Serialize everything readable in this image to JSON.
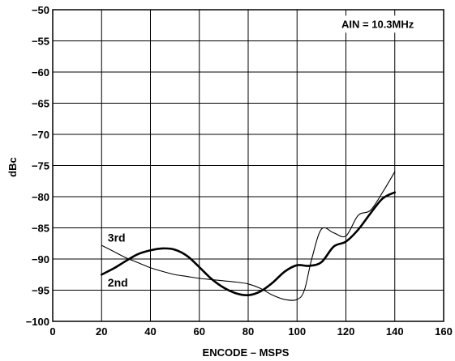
{
  "chart_data": {
    "type": "line",
    "title": "",
    "xlabel": "ENCODE – MSPS",
    "ylabel": "dBc",
    "xlim": [
      0,
      160
    ],
    "ylim": [
      -100,
      -50
    ],
    "xticks": [
      0,
      20,
      40,
      60,
      80,
      100,
      120,
      140,
      160
    ],
    "yticks": [
      -100,
      -95,
      -90,
      -85,
      -80,
      -75,
      -70,
      -65,
      -60,
      -55,
      -50
    ],
    "xtick_labels": [
      "0",
      "20",
      "40",
      "60",
      "80",
      "100",
      "120",
      "140",
      "160"
    ],
    "ytick_labels": [
      "−100",
      "−95",
      "−90",
      "−85",
      "−80",
      "−75",
      "−70",
      "−65",
      "−60",
      "−55",
      "−50"
    ],
    "grid": true,
    "legend": "none",
    "annotation": "AIN = 10.3MHz",
    "series": [
      {
        "name": "2nd",
        "line": "thick",
        "x": [
          20,
          25,
          30,
          35,
          40,
          45,
          50,
          55,
          60,
          65,
          70,
          75,
          80,
          85,
          90,
          95,
          100,
          105,
          110,
          115,
          120,
          125,
          130,
          135,
          140
        ],
        "y": [
          -92.5,
          -91.5,
          -90.3,
          -89.2,
          -88.6,
          -88.3,
          -88.5,
          -89.5,
          -91.3,
          -93.2,
          -94.6,
          -95.5,
          -95.8,
          -95.2,
          -93.8,
          -92.0,
          -91.0,
          -91.1,
          -90.5,
          -88.0,
          -87.2,
          -85.3,
          -82.7,
          -80.3,
          -79.3
        ]
      },
      {
        "name": "3rd",
        "line": "thin",
        "x": [
          20,
          25,
          30,
          35,
          40,
          45,
          50,
          55,
          60,
          65,
          70,
          75,
          80,
          85,
          90,
          95,
          100,
          103,
          106,
          110,
          115,
          120,
          125,
          130,
          135,
          140
        ],
        "y": [
          -87.8,
          -88.8,
          -89.8,
          -90.6,
          -91.4,
          -92.0,
          -92.5,
          -92.8,
          -93.1,
          -93.3,
          -93.5,
          -93.7,
          -94.0,
          -94.7,
          -95.8,
          -96.5,
          -96.5,
          -95.0,
          -90.0,
          -85.2,
          -85.8,
          -86.3,
          -83.0,
          -82.2,
          -79.3,
          -76.0
        ]
      }
    ]
  }
}
